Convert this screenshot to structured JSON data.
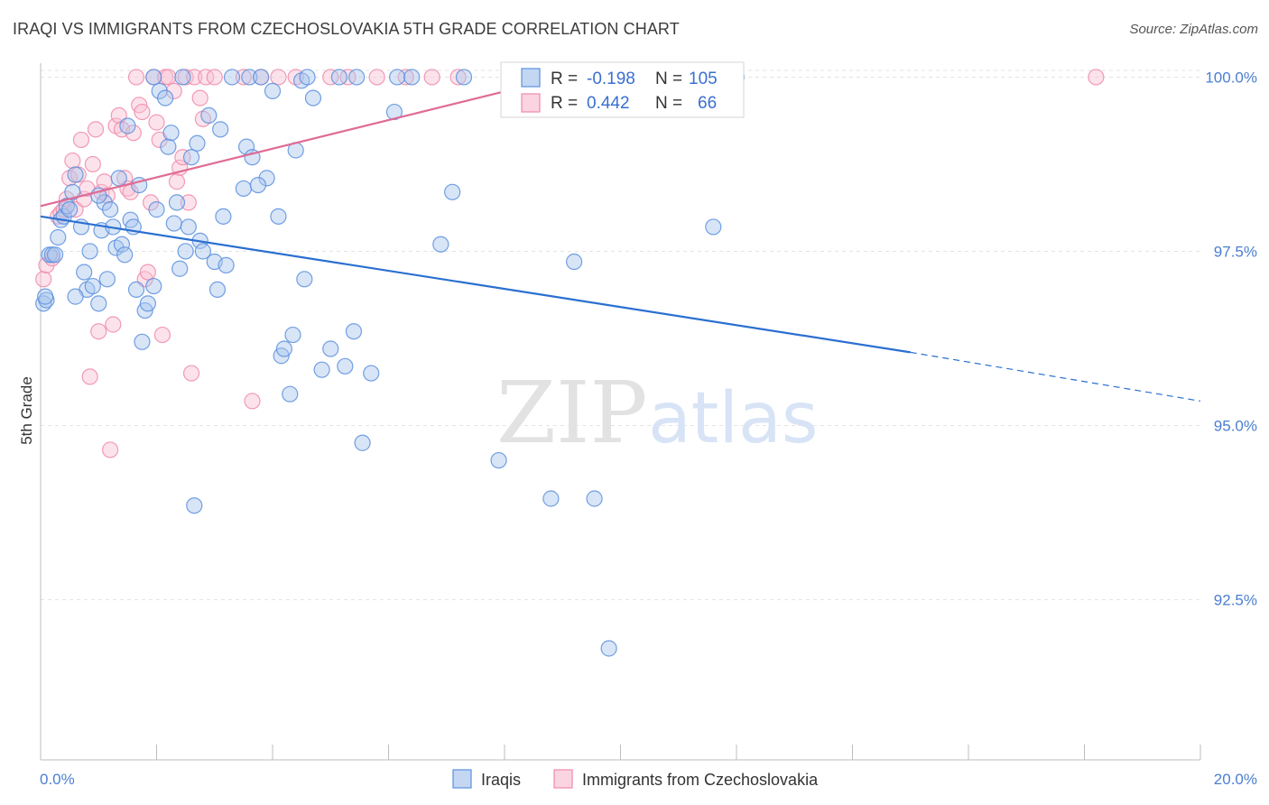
{
  "title": "IRAQI VS IMMIGRANTS FROM CZECHOSLOVAKIA 5TH GRADE CORRELATION CHART",
  "source": "Source: ZipAtlas.com",
  "watermark": {
    "zip": "ZIP",
    "atlas": "atlas"
  },
  "colors": {
    "iraqis": "#5b8fde",
    "czech": "#f08aaa",
    "iraqis_line": "#2a6fd0",
    "czech_line": "#e06a95",
    "tick_text": "#4a7fd0"
  },
  "legend_box": {
    "rows": [
      {
        "r_label": "R =",
        "r_value": "-0.198",
        "n_label": "N =",
        "n_value": "105"
      },
      {
        "r_label": "R =",
        "r_value": "0.442",
        "n_label": "N =",
        "n_value": "66"
      }
    ]
  },
  "chart_data": {
    "type": "scatter",
    "title": "IRAQI VS IMMIGRANTS FROM CZECHOSLOVAKIA 5TH GRADE CORRELATION CHART",
    "xlabel": "",
    "ylabel": "5th Grade",
    "xlim": [
      0,
      20
    ],
    "ylim": [
      90.2,
      100.2
    ],
    "x_tick_labels": [
      "0.0%",
      "20.0%"
    ],
    "y_ticks": [
      100.0,
      97.5,
      95.0,
      92.5
    ],
    "y_tick_labels": [
      "100.0%",
      "97.5%",
      "95.0%",
      "92.5%"
    ],
    "grid": true,
    "legend_position": "bottom",
    "series": [
      {
        "name": "Iraqis",
        "r": -0.198,
        "n": 105,
        "trend": {
          "x0": 0,
          "y0": 98.0,
          "x1": 15.0,
          "y1": 96.05,
          "dash_to_x": 20.0,
          "dash_to_y": 95.35
        },
        "points": [
          [
            0.05,
            96.75
          ],
          [
            0.1,
            96.8
          ],
          [
            0.15,
            97.45
          ],
          [
            0.2,
            97.45
          ],
          [
            0.25,
            97.45
          ],
          [
            0.3,
            97.7
          ],
          [
            0.35,
            97.95
          ],
          [
            0.4,
            98.0
          ],
          [
            0.45,
            98.15
          ],
          [
            0.5,
            98.1
          ],
          [
            0.55,
            98.35
          ],
          [
            0.6,
            98.6
          ],
          [
            0.7,
            97.85
          ],
          [
            0.75,
            97.2
          ],
          [
            0.8,
            96.95
          ],
          [
            0.85,
            97.5
          ],
          [
            0.9,
            97.0
          ],
          [
            1.0,
            96.75
          ],
          [
            1.05,
            97.8
          ],
          [
            1.1,
            98.2
          ],
          [
            1.15,
            97.1
          ],
          [
            1.2,
            98.1
          ],
          [
            1.25,
            97.85
          ],
          [
            1.3,
            97.55
          ],
          [
            1.35,
            98.55
          ],
          [
            1.4,
            97.6
          ],
          [
            1.45,
            97.45
          ],
          [
            1.55,
            97.95
          ],
          [
            1.6,
            97.85
          ],
          [
            1.65,
            96.95
          ],
          [
            1.7,
            98.45
          ],
          [
            1.75,
            96.2
          ],
          [
            1.8,
            96.65
          ],
          [
            1.85,
            96.75
          ],
          [
            1.95,
            97.0
          ],
          [
            2.0,
            98.1
          ],
          [
            2.05,
            99.8
          ],
          [
            2.15,
            99.7
          ],
          [
            2.2,
            99.0
          ],
          [
            2.25,
            99.2
          ],
          [
            2.3,
            97.9
          ],
          [
            2.35,
            98.2
          ],
          [
            2.4,
            97.25
          ],
          [
            2.5,
            97.5
          ],
          [
            2.55,
            97.85
          ],
          [
            2.6,
            98.85
          ],
          [
            2.65,
            93.85
          ],
          [
            2.7,
            99.05
          ],
          [
            2.75,
            97.65
          ],
          [
            2.8,
            97.5
          ],
          [
            2.9,
            99.45
          ],
          [
            3.0,
            97.35
          ],
          [
            3.05,
            96.95
          ],
          [
            3.1,
            99.25
          ],
          [
            3.15,
            98.0
          ],
          [
            3.2,
            97.3
          ],
          [
            3.3,
            100.0
          ],
          [
            3.5,
            98.4
          ],
          [
            3.55,
            99.0
          ],
          [
            3.6,
            100.0
          ],
          [
            3.65,
            98.85
          ],
          [
            3.8,
            100.0
          ],
          [
            3.9,
            98.55
          ],
          [
            4.0,
            99.8
          ],
          [
            4.1,
            98.0
          ],
          [
            4.15,
            96.0
          ],
          [
            4.2,
            96.1
          ],
          [
            4.3,
            95.45
          ],
          [
            4.35,
            96.3
          ],
          [
            4.4,
            98.95
          ],
          [
            4.5,
            99.95
          ],
          [
            4.55,
            97.1
          ],
          [
            4.6,
            100.0
          ],
          [
            4.7,
            99.7
          ],
          [
            4.85,
            95.8
          ],
          [
            5.0,
            96.1
          ],
          [
            5.15,
            100.0
          ],
          [
            5.25,
            95.85
          ],
          [
            5.4,
            96.35
          ],
          [
            5.45,
            100.0
          ],
          [
            5.55,
            94.75
          ],
          [
            5.7,
            95.75
          ],
          [
            6.1,
            99.5
          ],
          [
            6.15,
            100.0
          ],
          [
            6.4,
            100.0
          ],
          [
            6.9,
            97.6
          ],
          [
            7.1,
            98.35
          ],
          [
            7.3,
            100.0
          ],
          [
            7.9,
            94.5
          ],
          [
            8.5,
            100.0
          ],
          [
            8.8,
            93.95
          ],
          [
            8.9,
            100.0
          ],
          [
            9.2,
            97.35
          ],
          [
            9.55,
            93.95
          ],
          [
            9.8,
            91.8
          ],
          [
            11.6,
            97.85
          ],
          [
            12.0,
            100.0
          ],
          [
            0.08,
            96.85
          ],
          [
            0.6,
            96.85
          ],
          [
            2.45,
            100.0
          ],
          [
            3.75,
            98.45
          ],
          [
            1.95,
            100.0
          ],
          [
            1.5,
            99.3
          ],
          [
            1.0,
            98.3
          ]
        ]
      },
      {
        "name": "Immigrants from Czechoslovakia",
        "r": 0.442,
        "n": 66,
        "trend": {
          "x0": 0,
          "y0": 98.15,
          "x1": 9.0,
          "y1": 100.0
        },
        "points": [
          [
            0.05,
            97.1
          ],
          [
            0.1,
            97.3
          ],
          [
            0.2,
            97.4
          ],
          [
            0.3,
            98.0
          ],
          [
            0.35,
            98.05
          ],
          [
            0.4,
            98.1
          ],
          [
            0.45,
            98.25
          ],
          [
            0.5,
            98.55
          ],
          [
            0.55,
            98.8
          ],
          [
            0.6,
            98.1
          ],
          [
            0.65,
            98.6
          ],
          [
            0.7,
            99.1
          ],
          [
            0.75,
            98.25
          ],
          [
            0.8,
            98.4
          ],
          [
            0.85,
            95.7
          ],
          [
            0.9,
            98.75
          ],
          [
            0.95,
            99.25
          ],
          [
            1.0,
            96.35
          ],
          [
            1.05,
            98.35
          ],
          [
            1.1,
            98.5
          ],
          [
            1.15,
            98.3
          ],
          [
            1.2,
            94.65
          ],
          [
            1.25,
            96.45
          ],
          [
            1.3,
            99.3
          ],
          [
            1.35,
            99.45
          ],
          [
            1.4,
            99.25
          ],
          [
            1.45,
            98.55
          ],
          [
            1.5,
            98.4
          ],
          [
            1.55,
            98.35
          ],
          [
            1.6,
            99.2
          ],
          [
            1.65,
            100.0
          ],
          [
            1.7,
            99.6
          ],
          [
            1.75,
            99.5
          ],
          [
            1.8,
            97.1
          ],
          [
            1.85,
            97.2
          ],
          [
            1.9,
            98.2
          ],
          [
            1.95,
            100.0
          ],
          [
            2.0,
            99.35
          ],
          [
            2.05,
            99.1
          ],
          [
            2.1,
            96.3
          ],
          [
            2.15,
            100.0
          ],
          [
            2.2,
            100.0
          ],
          [
            2.3,
            99.8
          ],
          [
            2.35,
            98.5
          ],
          [
            2.4,
            98.7
          ],
          [
            2.45,
            98.85
          ],
          [
            2.5,
            100.0
          ],
          [
            2.55,
            98.2
          ],
          [
            2.6,
            95.75
          ],
          [
            2.65,
            100.0
          ],
          [
            2.75,
            99.7
          ],
          [
            2.8,
            99.4
          ],
          [
            2.85,
            100.0
          ],
          [
            3.0,
            100.0
          ],
          [
            3.5,
            100.0
          ],
          [
            3.65,
            95.35
          ],
          [
            3.8,
            100.0
          ],
          [
            4.1,
            100.0
          ],
          [
            4.4,
            100.0
          ],
          [
            5.0,
            100.0
          ],
          [
            5.3,
            100.0
          ],
          [
            5.8,
            100.0
          ],
          [
            6.3,
            100.0
          ],
          [
            6.75,
            100.0
          ],
          [
            7.2,
            100.0
          ],
          [
            18.2,
            100.0
          ]
        ]
      }
    ]
  },
  "bottom_legend": [
    {
      "label": "Iraqis"
    },
    {
      "label": "Immigrants from Czechoslovakia"
    }
  ]
}
